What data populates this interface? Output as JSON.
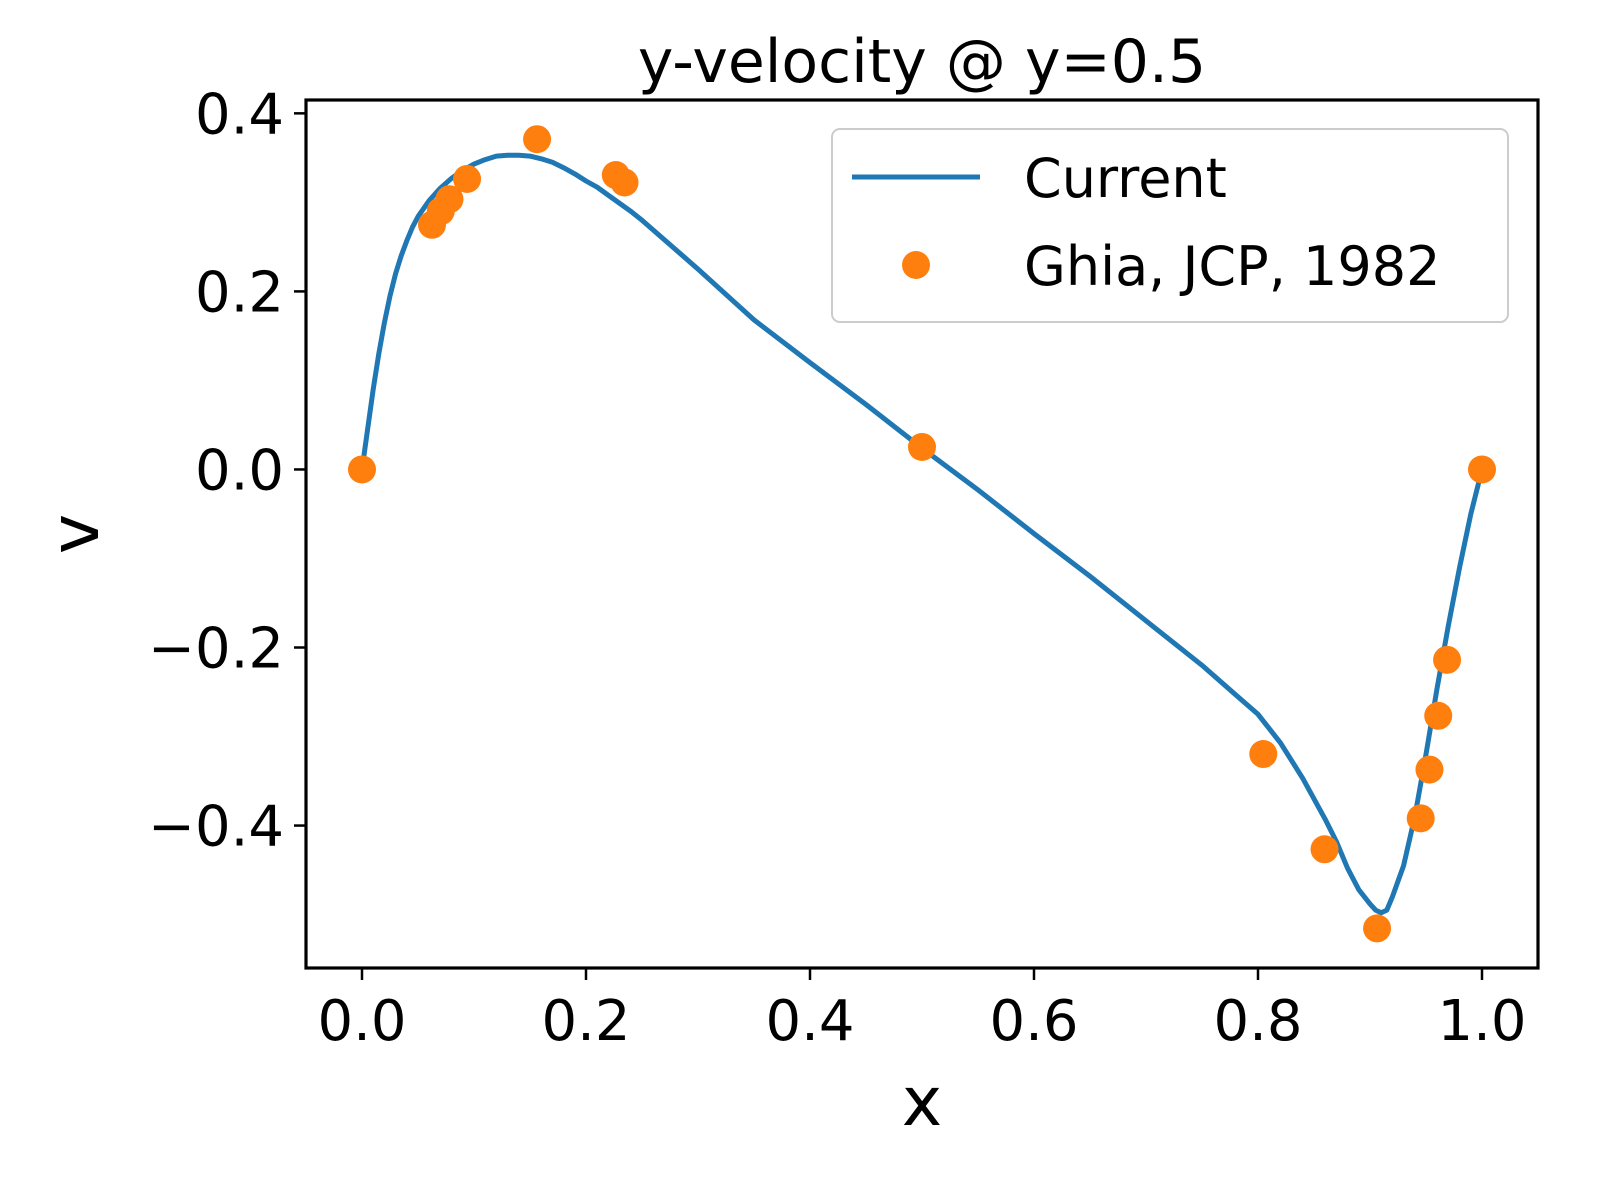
{
  "chart_data": {
    "type": "line",
    "title": "y-velocity @ y=0.5",
    "xlabel": "x",
    "ylabel": "v",
    "xlim": [
      -0.05,
      1.05
    ],
    "ylim": [
      -0.56,
      0.415
    ],
    "xticks": [
      0.0,
      0.2,
      0.4,
      0.6,
      0.8,
      1.0
    ],
    "yticks": [
      -0.4,
      -0.2,
      0.0,
      0.2,
      0.4
    ],
    "xtick_labels": [
      "0.0",
      "0.2",
      "0.4",
      "0.6",
      "0.8",
      "1.0"
    ],
    "ytick_labels": [
      "−0.4",
      "−0.2",
      "0.0",
      "0.2",
      "0.4"
    ],
    "grid": false,
    "legend_position": "top-right",
    "series": [
      {
        "name": "Current",
        "style": "line",
        "color": "#1f77b4",
        "x": [
          0.0,
          0.005,
          0.01,
          0.015,
          0.02,
          0.025,
          0.03,
          0.035,
          0.04,
          0.045,
          0.05,
          0.06,
          0.07,
          0.08,
          0.09,
          0.1,
          0.11,
          0.12,
          0.13,
          0.14,
          0.15,
          0.16,
          0.17,
          0.18,
          0.19,
          0.2,
          0.21,
          0.22,
          0.23,
          0.24,
          0.25,
          0.3,
          0.35,
          0.4,
          0.45,
          0.5,
          0.55,
          0.6,
          0.65,
          0.7,
          0.75,
          0.78,
          0.8,
          0.82,
          0.84,
          0.86,
          0.87,
          0.88,
          0.89,
          0.9,
          0.905,
          0.91,
          0.915,
          0.92,
          0.93,
          0.94,
          0.95,
          0.96,
          0.97,
          0.98,
          0.99,
          1.0
        ],
        "y": [
          0.0,
          0.045,
          0.09,
          0.13,
          0.165,
          0.195,
          0.22,
          0.24,
          0.257,
          0.272,
          0.284,
          0.302,
          0.316,
          0.327,
          0.336,
          0.343,
          0.348,
          0.352,
          0.353,
          0.353,
          0.352,
          0.349,
          0.345,
          0.339,
          0.332,
          0.324,
          0.317,
          0.308,
          0.299,
          0.29,
          0.28,
          0.225,
          0.168,
          0.12,
          0.073,
          0.024,
          -0.023,
          -0.072,
          -0.12,
          -0.17,
          -0.22,
          -0.253,
          -0.275,
          -0.307,
          -0.347,
          -0.393,
          -0.418,
          -0.448,
          -0.472,
          -0.488,
          -0.495,
          -0.498,
          -0.495,
          -0.48,
          -0.445,
          -0.39,
          -0.32,
          -0.245,
          -0.175,
          -0.11,
          -0.05,
          0.0
        ]
      },
      {
        "name": "Ghia, JCP, 1982",
        "style": "markers",
        "color": "#ff7f0e",
        "x": [
          0.0,
          0.0625,
          0.0703,
          0.0781,
          0.0938,
          0.1563,
          0.2266,
          0.2344,
          0.5,
          0.8047,
          0.8594,
          0.9063,
          0.9453,
          0.9531,
          0.9609,
          0.9688,
          1.0
        ],
        "y": [
          0.0,
          0.27485,
          0.29012,
          0.30353,
          0.32627,
          0.37095,
          0.33075,
          0.32235,
          0.02526,
          -0.31966,
          -0.42665,
          -0.5155,
          -0.39188,
          -0.33714,
          -0.27669,
          -0.21388,
          0.0
        ]
      }
    ]
  }
}
